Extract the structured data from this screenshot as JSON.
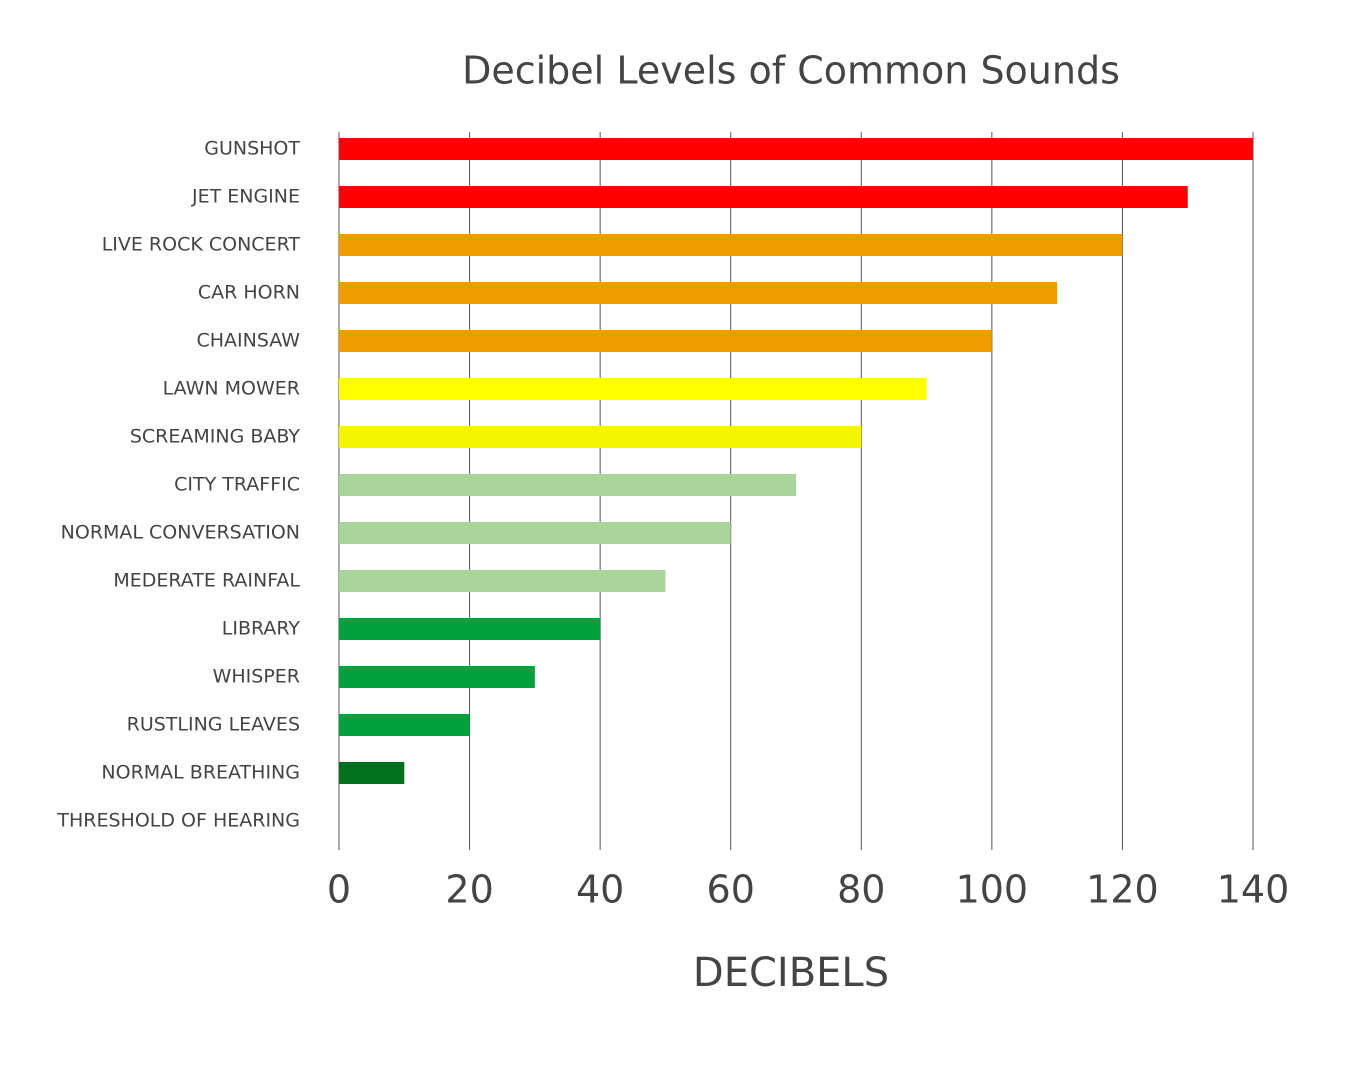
{
  "chart_data": {
    "type": "bar",
    "orientation": "horizontal",
    "title": "Decibel Levels of Common Sounds",
    "x_label": "DECIBELS",
    "categories": [
      "GUNSHOT",
      "JET ENGINE",
      "LIVE ROCK CONCERT",
      "CAR HORN",
      "CHAINSAW",
      "LAWN MOWER",
      "SCREAMING BABY",
      "CITY TRAFFIC",
      "NORMAL CONVERSATION",
      "MEDERATE RAINFAL",
      "LIBRARY",
      "WHISPER",
      "RUSTLING LEAVES",
      "NORMAL BREATHING",
      "THRESHOLD OF HEARING"
    ],
    "values": [
      140,
      130,
      120,
      110,
      100,
      90,
      80,
      70,
      60,
      50,
      40,
      30,
      20,
      10,
      0
    ],
    "colors": [
      "#ff0000",
      "#ff0000",
      "#ee9c00",
      "#ee9c00",
      "#ee9c00",
      "#ffff00",
      "#f5f500",
      "#a9d59d",
      "#a9d59d",
      "#a9d59d",
      "#00a03c",
      "#00a03c",
      "#00a03c",
      "#00701e",
      "#00701e"
    ],
    "xlim": [
      0,
      140
    ],
    "xticks": [
      0,
      20,
      40,
      60,
      80,
      100,
      120,
      140
    ],
    "grid": true
  }
}
